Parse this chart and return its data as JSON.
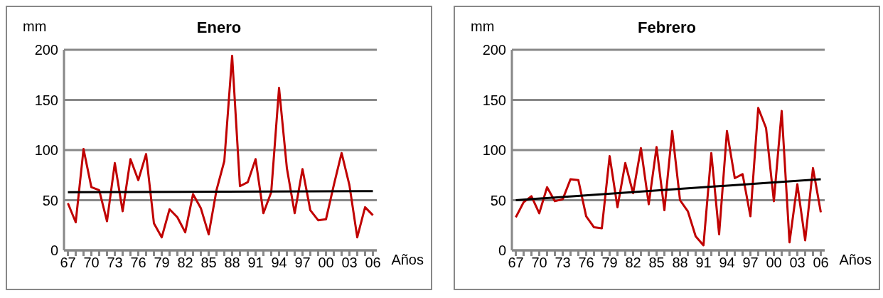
{
  "chart_data": [
    {
      "type": "line",
      "title": "Enero",
      "ylabel": "mm",
      "xlabel": "Años",
      "categories": [
        "67",
        null,
        null,
        "70",
        null,
        null,
        "73",
        null,
        null,
        "76",
        null,
        null,
        "79",
        null,
        null,
        "82",
        null,
        null,
        "85",
        null,
        null,
        "88",
        null,
        null,
        "91",
        null,
        null,
        "94",
        null,
        null,
        "97",
        null,
        null,
        "00",
        null,
        null,
        "03",
        null,
        null,
        "06"
      ],
      "series": [
        {
          "color": "#c00000",
          "values": [
            47,
            28,
            101,
            63,
            60,
            29,
            87,
            39,
            91,
            70,
            96,
            27,
            13,
            41,
            33,
            18,
            56,
            42,
            16,
            60,
            89,
            194,
            64,
            68,
            91,
            37,
            58,
            162,
            82,
            37,
            81,
            40,
            30,
            31,
            65,
            97,
            65,
            13,
            43,
            35
          ]
        },
        {
          "color": "#000000",
          "x": [
            "67",
            "06"
          ],
          "values": [
            58,
            59
          ]
        }
      ],
      "ylim": [
        0,
        200
      ],
      "yticks": [
        0,
        50,
        100,
        150,
        200
      ],
      "grid": "y",
      "marker": "none",
      "line_style": "solid"
    },
    {
      "type": "line",
      "title": "Febrero",
      "ylabel": "mm",
      "xlabel": "Años",
      "categories": [
        "67",
        null,
        null,
        "70",
        null,
        null,
        "73",
        null,
        null,
        "76",
        null,
        null,
        "79",
        null,
        null,
        "82",
        null,
        null,
        "85",
        null,
        null,
        "88",
        null,
        null,
        "91",
        null,
        null,
        "94",
        null,
        null,
        "97",
        null,
        null,
        "00",
        null,
        null,
        "03",
        null,
        null,
        "06"
      ],
      "series": [
        {
          "color": "#c00000",
          "values": [
            33,
            48,
            54,
            37,
            63,
            49,
            51,
            71,
            70,
            34,
            23,
            22,
            94,
            43,
            87,
            57,
            102,
            46,
            103,
            40,
            119,
            50,
            39,
            14,
            5,
            97,
            16,
            119,
            72,
            76,
            34,
            142,
            122,
            49,
            139,
            8,
            66,
            10,
            82,
            38
          ]
        },
        {
          "color": "#000000",
          "x": [
            "67",
            "06"
          ],
          "values": [
            50,
            71
          ]
        }
      ],
      "ylim": [
        0,
        200
      ],
      "yticks": [
        0,
        50,
        100,
        150,
        200
      ],
      "grid": "y",
      "marker": "none",
      "line_style": "solid"
    }
  ]
}
